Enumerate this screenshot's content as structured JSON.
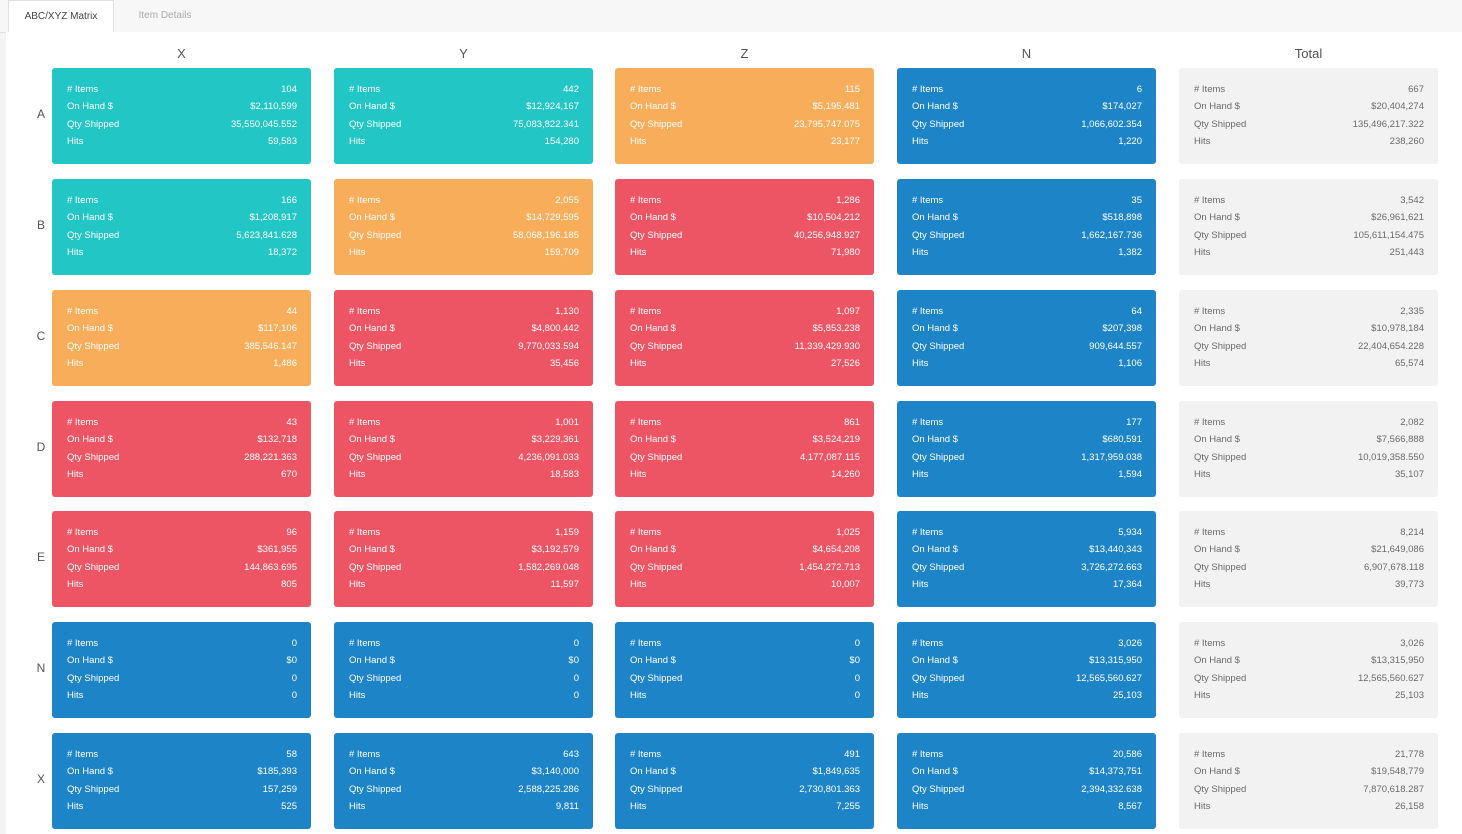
{
  "tabs": [
    {
      "label": "ABC/XYZ Matrix",
      "active": true
    },
    {
      "label": "Item Details",
      "active": false
    }
  ],
  "metric_labels": {
    "items": "# Items",
    "on_hand": "On Hand $",
    "qty_shipped": "Qty Shipped",
    "hits": "Hits"
  },
  "columns": [
    "X",
    "Y",
    "Z",
    "N",
    "Total"
  ],
  "colors": {
    "teal": "#22c6c5",
    "orange": "#f7ad5a",
    "red": "#ed5565",
    "blue": "#1d84c8",
    "gray": "#f2f2f2"
  },
  "rows": [
    {
      "label": "A",
      "cells": [
        {
          "color": "teal",
          "items": "104",
          "on_hand": "$2,110,599",
          "qty_shipped": "35,550,045.552",
          "hits": "59,583"
        },
        {
          "color": "teal",
          "items": "442",
          "on_hand": "$12,924,167",
          "qty_shipped": "75,083,822.341",
          "hits": "154,280"
        },
        {
          "color": "orange",
          "items": "115",
          "on_hand": "$5,195,481",
          "qty_shipped": "23,795,747.075",
          "hits": "23,177"
        },
        {
          "color": "blue",
          "items": "6",
          "on_hand": "$174,027",
          "qty_shipped": "1,066,602.354",
          "hits": "1,220"
        },
        {
          "color": "gray",
          "items": "667",
          "on_hand": "$20,404,274",
          "qty_shipped": "135,496,217.322",
          "hits": "238,260"
        }
      ]
    },
    {
      "label": "B",
      "cells": [
        {
          "color": "teal",
          "items": "166",
          "on_hand": "$1,208,917",
          "qty_shipped": "5,623,841.628",
          "hits": "18,372"
        },
        {
          "color": "orange",
          "items": "2,055",
          "on_hand": "$14,729,595",
          "qty_shipped": "58,068,196.185",
          "hits": "159,709"
        },
        {
          "color": "red",
          "items": "1,286",
          "on_hand": "$10,504,212",
          "qty_shipped": "40,256,948.927",
          "hits": "71,980"
        },
        {
          "color": "blue",
          "items": "35",
          "on_hand": "$518,898",
          "qty_shipped": "1,662,167.736",
          "hits": "1,382"
        },
        {
          "color": "gray",
          "items": "3,542",
          "on_hand": "$26,961,621",
          "qty_shipped": "105,611,154.475",
          "hits": "251,443"
        }
      ]
    },
    {
      "label": "C",
      "cells": [
        {
          "color": "orange",
          "items": "44",
          "on_hand": "$117,106",
          "qty_shipped": "385,546.147",
          "hits": "1,486"
        },
        {
          "color": "red",
          "items": "1,130",
          "on_hand": "$4,800,442",
          "qty_shipped": "9,770,033.594",
          "hits": "35,456"
        },
        {
          "color": "red",
          "items": "1,097",
          "on_hand": "$5,853,238",
          "qty_shipped": "11,339,429.930",
          "hits": "27,526"
        },
        {
          "color": "blue",
          "items": "64",
          "on_hand": "$207,398",
          "qty_shipped": "909,644.557",
          "hits": "1,106"
        },
        {
          "color": "gray",
          "items": "2,335",
          "on_hand": "$10,978,184",
          "qty_shipped": "22,404,654.228",
          "hits": "65,574"
        }
      ]
    },
    {
      "label": "D",
      "cells": [
        {
          "color": "red",
          "items": "43",
          "on_hand": "$132,718",
          "qty_shipped": "288,221.363",
          "hits": "670"
        },
        {
          "color": "red",
          "items": "1,001",
          "on_hand": "$3,229,361",
          "qty_shipped": "4,236,091.033",
          "hits": "18,583"
        },
        {
          "color": "red",
          "items": "861",
          "on_hand": "$3,524,219",
          "qty_shipped": "4,177,087.115",
          "hits": "14,260"
        },
        {
          "color": "blue",
          "items": "177",
          "on_hand": "$680,591",
          "qty_shipped": "1,317,959.038",
          "hits": "1,594"
        },
        {
          "color": "gray",
          "items": "2,082",
          "on_hand": "$7,566,888",
          "qty_shipped": "10,019,358.550",
          "hits": "35,107"
        }
      ]
    },
    {
      "label": "E",
      "cells": [
        {
          "color": "red",
          "items": "96",
          "on_hand": "$361,955",
          "qty_shipped": "144,863.695",
          "hits": "805"
        },
        {
          "color": "red",
          "items": "1,159",
          "on_hand": "$3,192,579",
          "qty_shipped": "1,582,269.048",
          "hits": "11,597"
        },
        {
          "color": "red",
          "items": "1,025",
          "on_hand": "$4,654,208",
          "qty_shipped": "1,454,272.713",
          "hits": "10,007"
        },
        {
          "color": "blue",
          "items": "5,934",
          "on_hand": "$13,440,343",
          "qty_shipped": "3,726,272.663",
          "hits": "17,364"
        },
        {
          "color": "gray",
          "items": "8,214",
          "on_hand": "$21,649,086",
          "qty_shipped": "6,907,678.118",
          "hits": "39,773"
        }
      ]
    },
    {
      "label": "N",
      "cells": [
        {
          "color": "blue",
          "items": "0",
          "on_hand": "$0",
          "qty_shipped": "0",
          "hits": "0"
        },
        {
          "color": "blue",
          "items": "0",
          "on_hand": "$0",
          "qty_shipped": "0",
          "hits": "0"
        },
        {
          "color": "blue",
          "items": "0",
          "on_hand": "$0",
          "qty_shipped": "0",
          "hits": "0"
        },
        {
          "color": "blue",
          "items": "3,026",
          "on_hand": "$13,315,950",
          "qty_shipped": "12,565,560.627",
          "hits": "25,103"
        },
        {
          "color": "gray",
          "items": "3,026",
          "on_hand": "$13,315,950",
          "qty_shipped": "12,565,560.627",
          "hits": "25,103"
        }
      ]
    },
    {
      "label": "X",
      "cells": [
        {
          "color": "blue",
          "items": "58",
          "on_hand": "$185,393",
          "qty_shipped": "157,259",
          "hits": "525"
        },
        {
          "color": "blue",
          "items": "643",
          "on_hand": "$3,140,000",
          "qty_shipped": "2,588,225.286",
          "hits": "9,811"
        },
        {
          "color": "blue",
          "items": "491",
          "on_hand": "$1,849,635",
          "qty_shipped": "2,730,801.363",
          "hits": "7,255"
        },
        {
          "color": "blue",
          "items": "20,586",
          "on_hand": "$14,373,751",
          "qty_shipped": "2,394,332.638",
          "hits": "8,567"
        },
        {
          "color": "gray",
          "items": "21,778",
          "on_hand": "$19,548,779",
          "qty_shipped": "7,870,618.287",
          "hits": "26,158"
        }
      ]
    }
  ]
}
